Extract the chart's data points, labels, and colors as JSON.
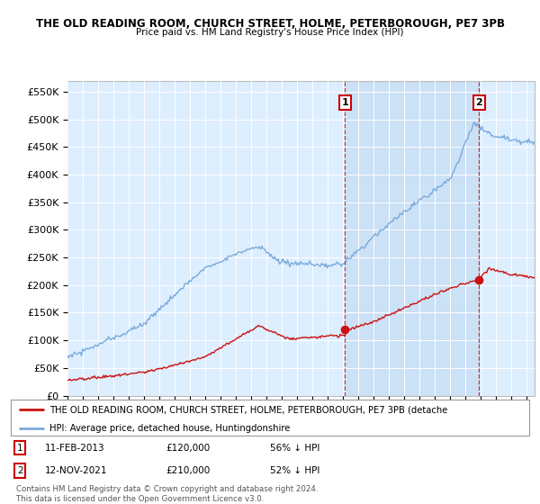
{
  "title1": "THE OLD READING ROOM, CHURCH STREET, HOLME, PETERBOROUGH, PE7 3PB",
  "title2": "Price paid vs. HM Land Registry's House Price Index (HPI)",
  "ylim": [
    0,
    570000
  ],
  "yticks": [
    0,
    50000,
    100000,
    150000,
    200000,
    250000,
    300000,
    350000,
    400000,
    450000,
    500000,
    550000
  ],
  "ytick_labels": [
    "£0",
    "£50K",
    "£100K",
    "£150K",
    "£200K",
    "£250K",
    "£300K",
    "£350K",
    "£400K",
    "£450K",
    "£500K",
    "£550K"
  ],
  "hpi_color": "#7aabdb",
  "price_color": "#cc1111",
  "bg_color": "#ddeeff",
  "shade_color": "#c8dff5",
  "sale1_date": 2013.12,
  "sale1_price": 120000,
  "sale2_date": 2021.87,
  "sale2_price": 210000,
  "xmin": 1995,
  "xmax": 2025.5,
  "legend_property": "THE OLD READING ROOM, CHURCH STREET, HOLME, PETERBOROUGH, PE7 3PB (detache",
  "legend_hpi": "HPI: Average price, detached house, Huntingdonshire",
  "footer": "Contains HM Land Registry data © Crown copyright and database right 2024.\nThis data is licensed under the Open Government Licence v3.0."
}
